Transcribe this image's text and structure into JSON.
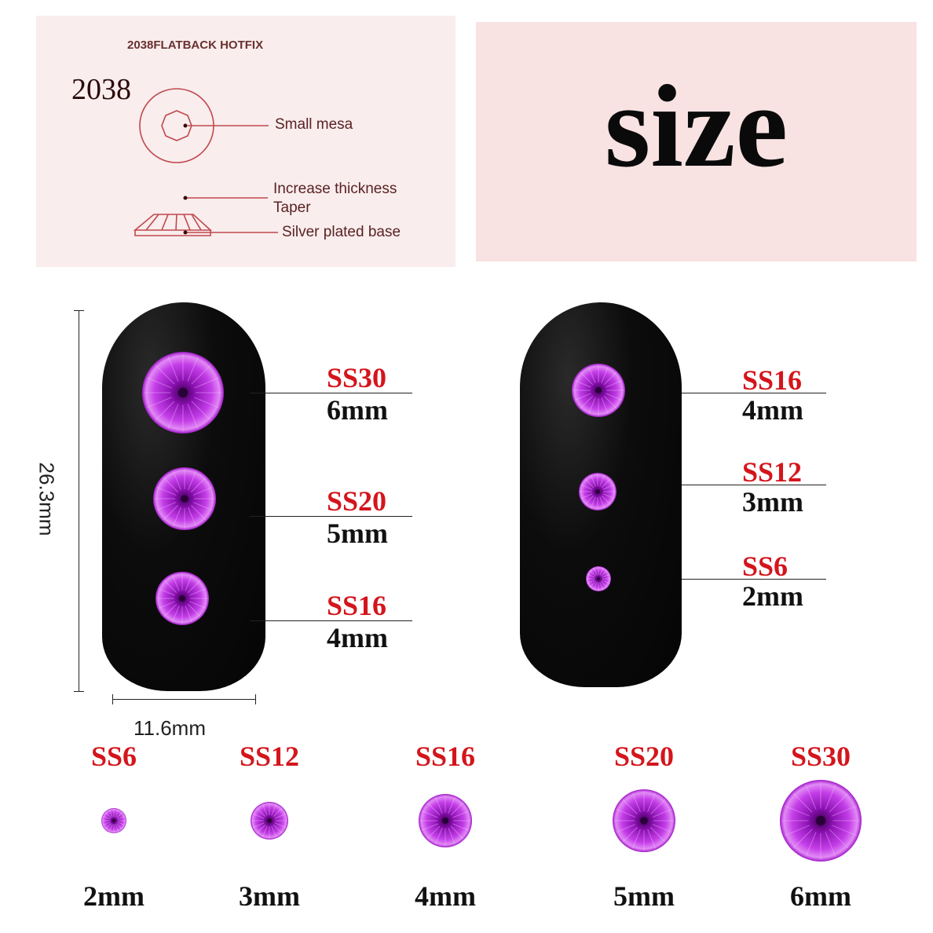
{
  "diagram": {
    "header": "2038FLATBACK HOTFIX",
    "model": "2038",
    "labels": [
      "Small mesa",
      "Increase thickness",
      "Taper",
      "Silver plated base"
    ],
    "line_color": "#c0484e"
  },
  "title": "size",
  "dimensions": {
    "height": "26.3mm",
    "width": "11.6mm"
  },
  "colors": {
    "gem": "#b21fd6",
    "label_red": "#d4151c",
    "nail": "#0a0a0a"
  },
  "left_nail": [
    {
      "ss": "SS30",
      "mm": "6mm"
    },
    {
      "ss": "SS20",
      "mm": "5mm"
    },
    {
      "ss": "SS16",
      "mm": "4mm"
    }
  ],
  "right_nail": [
    {
      "ss": "SS16",
      "mm": "4mm"
    },
    {
      "ss": "SS12",
      "mm": "3mm"
    },
    {
      "ss": "SS6",
      "mm": "2mm"
    }
  ],
  "row": [
    {
      "ss": "SS6",
      "mm": "2mm"
    },
    {
      "ss": "SS12",
      "mm": "3mm"
    },
    {
      "ss": "SS16",
      "mm": "4mm"
    },
    {
      "ss": "SS20",
      "mm": "5mm"
    },
    {
      "ss": "SS30",
      "mm": "6mm"
    }
  ]
}
